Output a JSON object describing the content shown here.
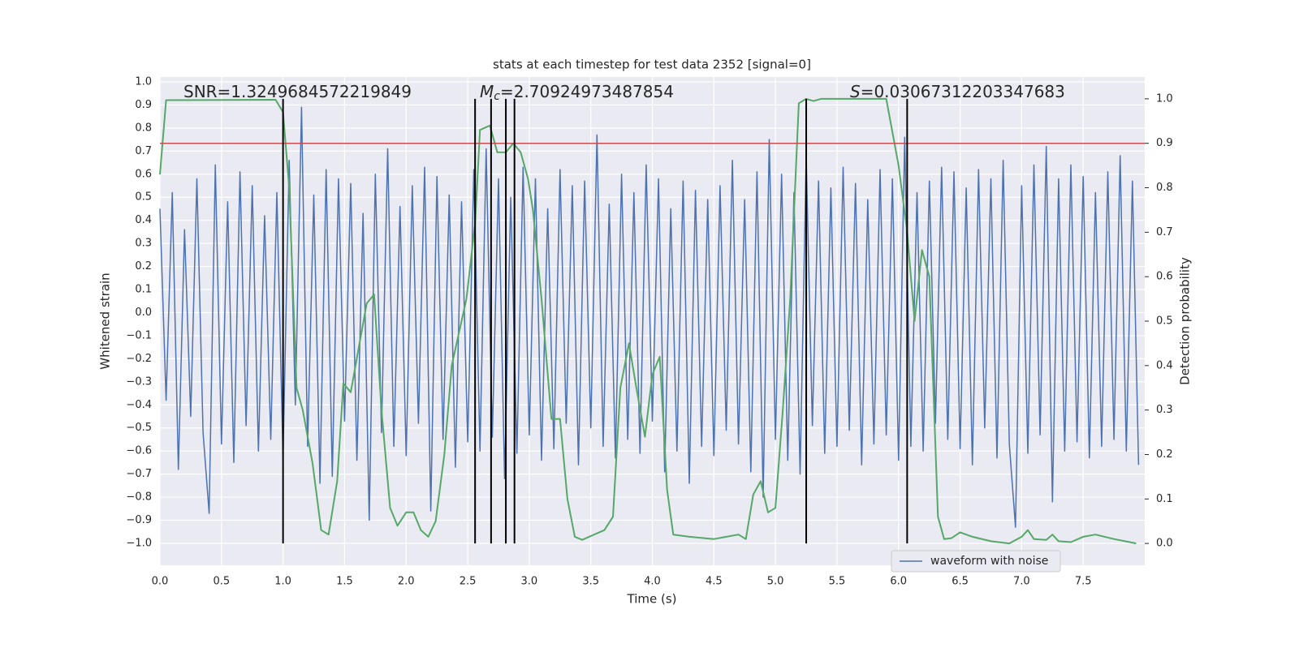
{
  "chart_data": {
    "type": "line",
    "title": "stats at each timestep for test data 2352 [signal=0]",
    "xlabel": "Time (s)",
    "ylabel": "Whitened strain",
    "y2label": "Detection probability",
    "annotations": [
      {
        "text": "SNR=1.3249684572219849"
      },
      {
        "symbol": "M",
        "subscript": "c",
        "text": "=2.70924973487854"
      },
      {
        "symbol": "S",
        "text": "=0.03067312203347683"
      }
    ],
    "xlim": [
      0,
      8
    ],
    "ylim": [
      -1.095,
      1.021
    ],
    "y2lim": [
      -0.049,
      1.049
    ],
    "xticks": [
      {
        "value": 0,
        "label": "0.0"
      },
      0.5,
      {
        "value": 1,
        "label": "1.0"
      },
      1.5,
      {
        "value": 2,
        "label": "2.0"
      },
      2.5,
      {
        "value": 3,
        "label": "3.0"
      },
      3.5,
      {
        "value": 4,
        "label": "4.0"
      },
      4.5,
      {
        "value": 5,
        "label": "5.0"
      },
      5.5,
      {
        "value": 6,
        "label": "6.0"
      },
      6.5,
      {
        "value": 7,
        "label": "7.0"
      },
      7.5
    ],
    "yticks": [
      {
        "value": -1,
        "label": "−1.0"
      },
      {
        "value": -0.9,
        "label": "−0.9"
      },
      {
        "value": -0.8,
        "label": "−0.8"
      },
      {
        "value": -0.7,
        "label": "−0.7"
      },
      {
        "value": -0.6,
        "label": "−0.6"
      },
      {
        "value": -0.5,
        "label": "−0.5"
      },
      {
        "value": -0.4,
        "label": "−0.4"
      },
      {
        "value": -0.3,
        "label": "−0.3"
      },
      {
        "value": -0.2,
        "label": "−0.2"
      },
      {
        "value": -0.1,
        "label": "−0.1"
      },
      {
        "value": 0,
        "label": "0.0"
      },
      0.1,
      0.2,
      0.3,
      0.4,
      0.5,
      0.6,
      0.7,
      0.8,
      0.9,
      {
        "value": 1,
        "label": "1.0"
      }
    ],
    "y2ticks": [
      {
        "value": 0,
        "label": "0.0"
      },
      0.1,
      0.2,
      0.3,
      0.4,
      0.5,
      0.6,
      0.7,
      0.8,
      0.9,
      {
        "value": 1,
        "label": "1.0"
      }
    ],
    "grid": true,
    "legend": "lower right",
    "series": [
      {
        "name": "waveform with noise",
        "color": "#4c72b0",
        "axis": "y",
        "x": [
          0,
          0.05,
          0.1,
          0.15,
          0.2,
          0.25,
          0.3,
          0.35,
          0.4,
          0.45,
          0.5,
          0.55,
          0.6,
          0.65,
          0.7,
          0.75,
          0.8,
          0.85,
          0.9,
          0.95,
          1,
          1.05,
          1.1,
          1.15,
          1.2,
          1.25,
          1.3,
          1.35,
          1.4,
          1.45,
          1.5,
          1.55,
          1.6,
          1.65,
          1.7,
          1.75,
          1.8,
          1.85,
          1.9,
          1.95,
          2,
          2.05,
          2.1,
          2.15,
          2.2,
          2.25,
          2.3,
          2.35,
          2.4,
          2.45,
          2.5,
          2.55,
          2.6,
          2.65,
          2.7,
          2.75,
          2.8,
          2.85,
          2.9,
          2.95,
          3,
          3.05,
          3.1,
          3.15,
          3.2,
          3.25,
          3.3,
          3.35,
          3.4,
          3.45,
          3.5,
          3.55,
          3.6,
          3.65,
          3.7,
          3.75,
          3.8,
          3.85,
          3.9,
          3.95,
          4,
          4.05,
          4.1,
          4.15,
          4.2,
          4.25,
          4.3,
          4.35,
          4.4,
          4.45,
          4.5,
          4.55,
          4.6,
          4.65,
          4.7,
          4.75,
          4.8,
          4.85,
          4.9,
          4.95,
          5,
          5.05,
          5.1,
          5.15,
          5.2,
          5.25,
          5.3,
          5.35,
          5.4,
          5.45,
          5.5,
          5.55,
          5.6,
          5.65,
          5.7,
          5.75,
          5.8,
          5.85,
          5.9,
          5.95,
          6,
          6.05,
          6.1,
          6.15,
          6.2,
          6.25,
          6.3,
          6.35,
          6.4,
          6.45,
          6.5,
          6.55,
          6.6,
          6.65,
          6.7,
          6.75,
          6.8,
          6.85,
          6.9,
          6.95,
          7,
          7.05,
          7.1,
          7.15,
          7.2,
          7.25,
          7.3,
          7.35,
          7.4,
          7.45,
          7.5,
          7.55,
          7.6,
          7.65,
          7.7,
          7.75,
          7.8,
          7.85,
          7.9,
          7.95
        ],
        "values": [
          0.45,
          -0.38,
          0.52,
          -0.68,
          0.36,
          -0.45,
          0.58,
          -0.52,
          -0.87,
          0.64,
          -0.57,
          0.48,
          -0.65,
          0.61,
          -0.49,
          0.55,
          -0.6,
          0.42,
          -0.55,
          0.52,
          -0.63,
          0.66,
          -0.4,
          0.89,
          -0.58,
          0.51,
          -0.74,
          0.62,
          -0.71,
          0.58,
          -0.47,
          0.56,
          -0.64,
          0.43,
          -0.9,
          0.6,
          -0.52,
          0.71,
          -0.58,
          0.46,
          -0.62,
          0.55,
          -0.48,
          0.63,
          -0.86,
          0.59,
          -0.55,
          0.51,
          -0.67,
          0.48,
          -0.56,
          0.62,
          -0.6,
          0.71,
          -0.54,
          0.58,
          -0.72,
          0.5,
          -0.61,
          0.63,
          -0.53,
          0.58,
          -0.64,
          0.45,
          -0.59,
          0.62,
          -0.48,
          0.55,
          -0.66,
          0.57,
          -0.5,
          0.77,
          -0.58,
          0.47,
          -0.63,
          0.6,
          -0.55,
          0.52,
          -0.61,
          0.64,
          -0.47,
          0.58,
          -0.69,
          0.45,
          -0.6,
          0.57,
          -0.74,
          0.53,
          -0.58,
          0.49,
          -0.62,
          0.55,
          -0.51,
          0.66,
          -0.57,
          0.49,
          -0.69,
          0.61,
          -0.8,
          0.75,
          -0.55,
          0.6,
          -0.64,
          0.52,
          -0.7,
          0.68,
          -0.49,
          0.57,
          -0.61,
          0.54,
          -0.58,
          0.63,
          -0.51,
          0.56,
          -0.66,
          0.49,
          -0.57,
          0.62,
          -0.53,
          0.58,
          -0.64,
          0.76,
          -0.58,
          0.52,
          -0.6,
          0.57,
          -0.48,
          0.63,
          -0.55,
          0.61,
          -0.59,
          0.54,
          -0.66,
          0.62,
          -0.5,
          0.58,
          -0.63,
          0.66,
          -0.57,
          -0.93,
          0.55,
          -0.61,
          0.64,
          -0.53,
          0.72,
          -0.82,
          0.58,
          -0.6,
          0.64,
          -0.56,
          0.59,
          -0.63,
          0.52,
          -0.58,
          0.61,
          -0.55,
          0.68,
          -0.6,
          0.57,
          -0.66
        ]
      },
      {
        "color": "#55a868",
        "axis": "y2",
        "x": [
          0,
          0.05,
          0.94,
          1,
          1.05,
          1.11,
          1.16,
          1.24,
          1.31,
          1.37,
          1.44,
          1.49,
          1.55,
          1.68,
          1.74,
          1.8,
          1.87,
          1.93,
          2,
          2.06,
          2.12,
          2.18,
          2.24,
          2.31,
          2.37,
          2.49,
          2.56,
          2.6,
          2.68,
          2.74,
          2.81,
          2.87,
          2.93,
          2.99,
          3.03,
          3.1,
          3.18,
          3.25,
          3.31,
          3.37,
          3.43,
          3.61,
          3.68,
          3.74,
          3.81,
          3.87,
          3.94,
          4,
          4.06,
          4.12,
          4.17,
          4.3,
          4.5,
          4.7,
          4.76,
          4.82,
          4.88,
          4.94,
          5,
          5.06,
          5.12,
          5.19,
          5.25,
          5.31,
          5.37,
          5.5,
          5.9,
          6,
          6.07,
          6.13,
          6.19,
          6.25,
          6.32,
          6.37,
          6.43,
          6.5,
          6.6,
          6.75,
          6.9,
          7,
          7.05,
          7.1,
          7.2,
          7.25,
          7.3,
          7.4,
          7.5,
          7.6,
          7.75,
          7.93
        ],
        "values": [
          0.83,
          0.997,
          0.998,
          0.97,
          0.8,
          0.35,
          0.3,
          0.18,
          0.03,
          0.02,
          0.14,
          0.36,
          0.34,
          0.54,
          0.56,
          0.3,
          0.08,
          0.04,
          0.07,
          0.07,
          0.03,
          0.015,
          0.05,
          0.2,
          0.4,
          0.55,
          0.72,
          0.93,
          0.94,
          0.88,
          0.88,
          0.9,
          0.88,
          0.82,
          0.75,
          0.55,
          0.28,
          0.28,
          0.1,
          0.015,
          0.008,
          0.03,
          0.06,
          0.35,
          0.45,
          0.35,
          0.24,
          0.38,
          0.42,
          0.12,
          0.02,
          0.015,
          0.01,
          0.02,
          0.01,
          0.11,
          0.14,
          0.07,
          0.08,
          0.3,
          0.55,
          0.99,
          1,
          0.995,
          1,
          1,
          1,
          0.85,
          0.7,
          0.5,
          0.66,
          0.6,
          0.06,
          0.01,
          0.012,
          0.025,
          0.015,
          0.005,
          0.0,
          0.015,
          0.03,
          0.01,
          0.008,
          0.02,
          0.005,
          0.003,
          0.015,
          0.02,
          0.01,
          0.0
        ]
      }
    ],
    "vlines": {
      "x": [
        1.0,
        2.56,
        2.69,
        2.81,
        2.88,
        5.25,
        6.07
      ],
      "span": [
        0,
        1
      ],
      "axis": "y2",
      "color": "#000000"
    },
    "hline": {
      "value": 0.9,
      "axis": "y2",
      "color": "#c44e52"
    }
  }
}
